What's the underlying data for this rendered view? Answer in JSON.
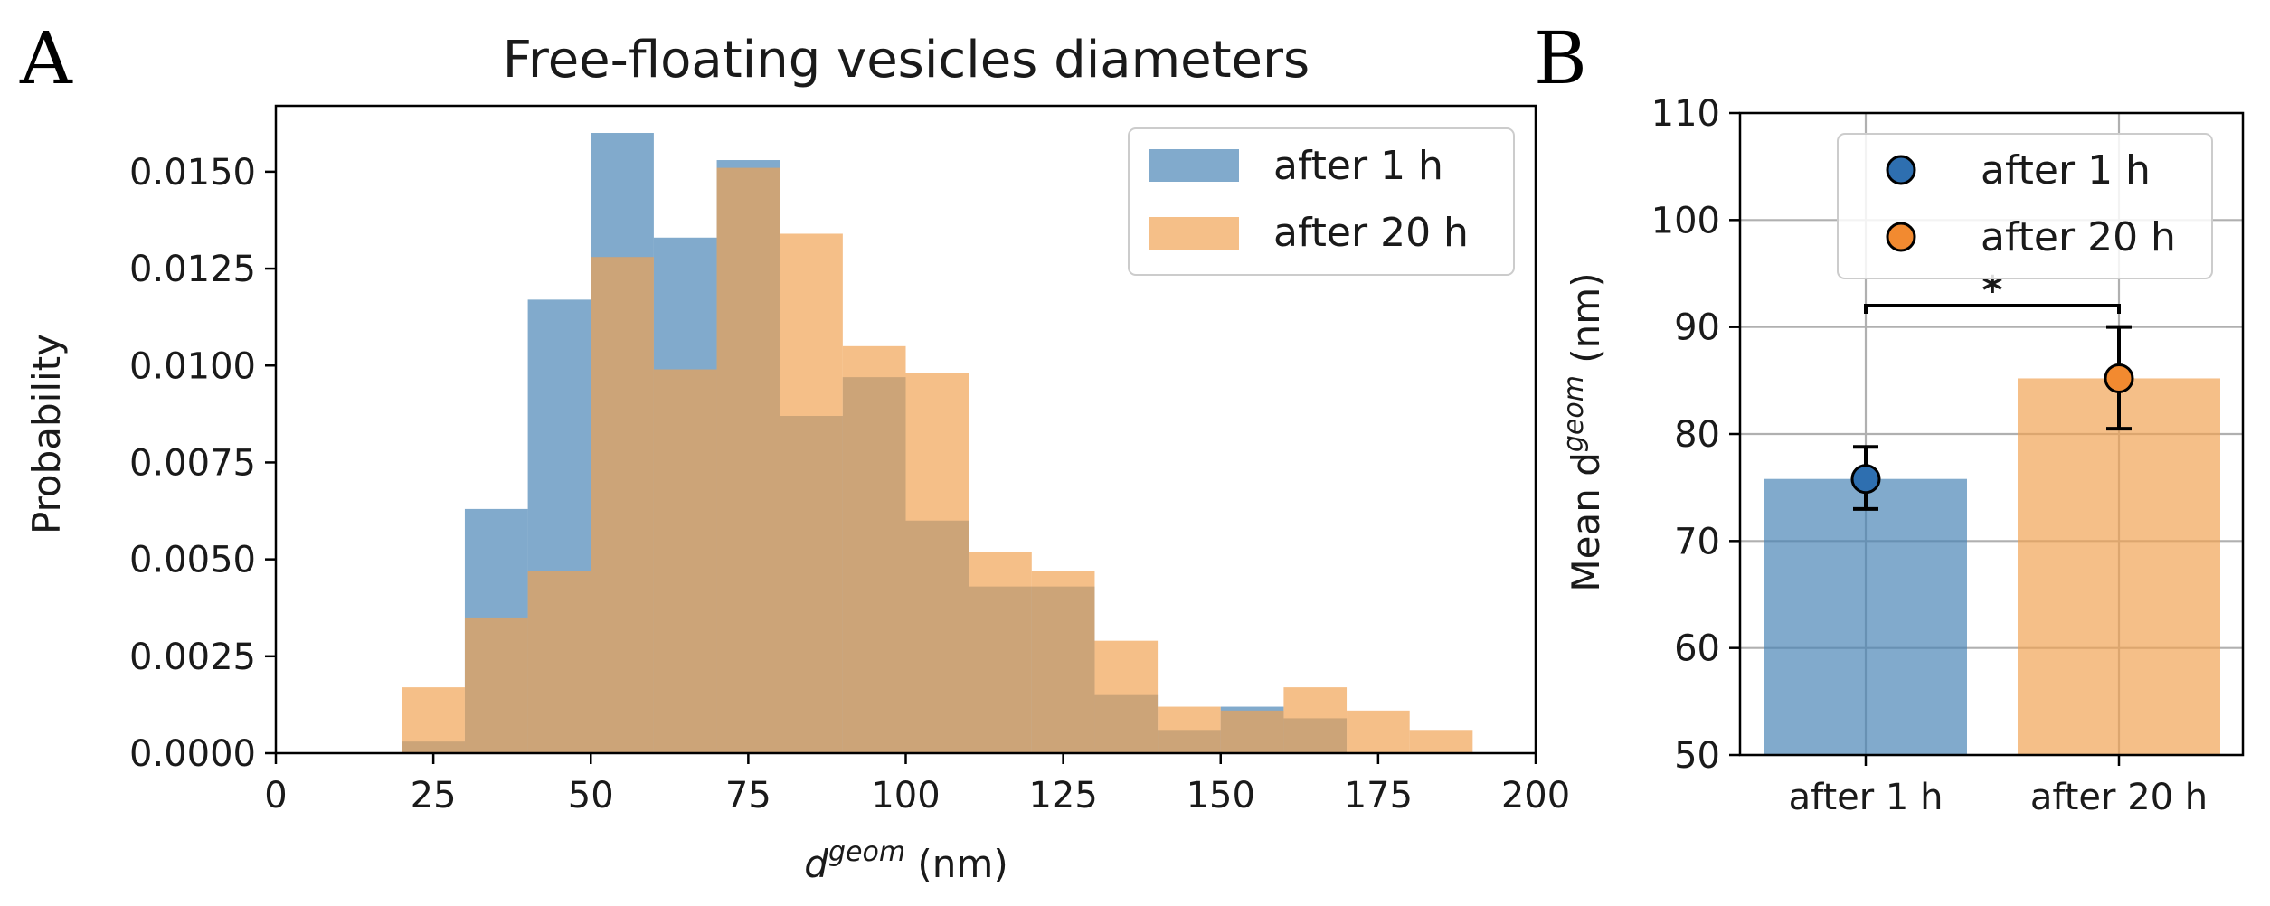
{
  "figure": {
    "panel_a_label": "A",
    "panel_b_label": "B"
  },
  "colors": {
    "blue": "#4682b4",
    "orange": "#f0a050",
    "blue_marker": "#2e6fb0",
    "orange_marker": "#f28a30",
    "error_bar": "#000000"
  },
  "chart_data": [
    {
      "type": "histogram",
      "title": "Free-floating vesicles diameters",
      "xlabel": "d",
      "xlabel_sup": "geom",
      "xlabel_unit": " (nm)",
      "ylabel": "Probability",
      "xlim": [
        0,
        200
      ],
      "ylim": [
        0,
        0.0167
      ],
      "xticks": [
        0,
        25,
        50,
        75,
        100,
        125,
        150,
        175,
        200
      ],
      "yticks": [
        0.0,
        0.0025,
        0.005,
        0.0075,
        0.01,
        0.0125,
        0.015
      ],
      "ytick_labels": [
        "0.0000",
        "0.0025",
        "0.0050",
        "0.0075",
        "0.0100",
        "0.0125",
        "0.0150"
      ],
      "legend_position": "top-right",
      "series": [
        {
          "name": "after 1 h",
          "bin_edges": [
            20,
            30,
            40,
            50,
            60,
            70,
            80,
            90,
            100,
            110,
            120,
            130,
            140,
            150,
            160,
            170
          ],
          "values": [
            0.0003,
            0.0063,
            0.0117,
            0.016,
            0.0133,
            0.0153,
            0.0087,
            0.0097,
            0.006,
            0.0043,
            0.0043,
            0.0015,
            0.0006,
            0.0012,
            0.0009
          ]
        },
        {
          "name": "after 20 h",
          "bin_edges": [
            20,
            30,
            40,
            50,
            60,
            70,
            80,
            90,
            100,
            110,
            120,
            130,
            140,
            150,
            160,
            170,
            180,
            190
          ],
          "values": [
            0.0017,
            0.0035,
            0.0047,
            0.0128,
            0.0099,
            0.0151,
            0.0134,
            0.0105,
            0.0098,
            0.0052,
            0.0047,
            0.0029,
            0.0012,
            0.0011,
            0.0017,
            0.0011,
            0.0006
          ]
        }
      ]
    },
    {
      "type": "bar",
      "categories": [
        "after 1 h",
        "after 20 h"
      ],
      "ylabel": "Mean d",
      "ylabel_sup": "geom",
      "ylabel_unit": " (nm)",
      "ylim": [
        50,
        110
      ],
      "yticks": [
        50,
        60,
        70,
        80,
        90,
        100,
        110
      ],
      "grid": true,
      "legend_position": "top-right",
      "series": [
        {
          "name": "after 1 h",
          "value": 75.8,
          "mean": 75.8,
          "err_low": 73.0,
          "err_high": 78.8
        },
        {
          "name": "after 20 h",
          "value": 85.2,
          "mean": 85.2,
          "err_low": 80.5,
          "err_high": 90.0
        }
      ],
      "significance": {
        "label": "*",
        "y": 92
      }
    }
  ]
}
